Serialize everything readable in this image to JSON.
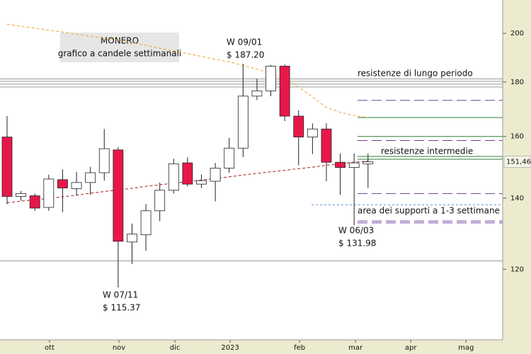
{
  "chart_data": {
    "type": "candlestick",
    "log_scale": true,
    "ylim": [
      103,
      215
    ],
    "yticks": [
      120,
      140,
      160,
      180,
      200
    ],
    "xlim": [
      -0.51,
      35.7
    ],
    "xticks": [
      {
        "value": 3.06,
        "label": "ott"
      },
      {
        "value": 8.06,
        "label": "nov"
      },
      {
        "value": 12.09,
        "label": "dic"
      },
      {
        "value": 16.07,
        "label": "2023"
      },
      {
        "value": 21.07,
        "label": "feb"
      },
      {
        "value": 25.1,
        "label": "mar"
      },
      {
        "value": 29.08,
        "label": "apr"
      },
      {
        "value": 33.06,
        "label": "mag"
      }
    ],
    "up_color": "#ffffff",
    "down_color": "#e8174a",
    "open": [
      159.8,
      140.5,
      140.7,
      137.2,
      145.7,
      142.9,
      144.8,
      147.9,
      155.4,
      127.3,
      129.3,
      136.2,
      142.4,
      151.1,
      144.3,
      145.2,
      149.4,
      156.0,
      174.6,
      176.6,
      186.3,
      167.2,
      159.8,
      162.6,
      151.3,
      149.6,
      150.8
    ],
    "high": [
      167.2,
      142.2,
      141.4,
      147.3,
      149.0,
      148.2,
      149.8,
      162.6,
      156.3,
      132.5,
      138.2,
      144.8,
      152.5,
      152.9,
      147.3,
      151.1,
      159.5,
      187.2,
      181.3,
      186.8,
      187.0,
      169.3,
      164.6,
      164.6,
      154.2,
      154.2,
      154.2
    ],
    "low": [
      138.2,
      139.2,
      136.2,
      136.2,
      135.8,
      140.7,
      141.0,
      145.4,
      115.37,
      121.4,
      124.9,
      133.2,
      141.4,
      143.6,
      143.1,
      139.0,
      147.9,
      153.0,
      173.1,
      174.6,
      165.4,
      150.3,
      154.0,
      145.2,
      141.0,
      131.98,
      143.1
    ],
    "close": [
      140.5,
      141.4,
      137.0,
      145.9,
      143.1,
      144.8,
      147.9,
      155.8,
      127.5,
      129.5,
      136.2,
      142.4,
      150.8,
      144.3,
      145.4,
      149.4,
      156.0,
      174.6,
      176.6,
      186.3,
      167.2,
      159.8,
      162.6,
      151.3,
      149.6,
      151.1,
      151.46
    ],
    "series": [
      {
        "color": "#f0a030",
        "values": [
          204.0,
          203.1,
          202.3,
          201.4,
          200.6,
          199.7,
          198.8,
          198.0,
          197.1,
          196.0,
          194.9,
          193.7,
          192.6,
          191.4,
          190.3,
          189.1,
          188.0,
          186.6,
          185.1,
          183.4,
          181.4,
          178.1,
          174.3,
          170.4,
          168.6,
          167.4,
          166.7
        ]
      },
      {
        "color": "#a02020",
        "values": [
          138.6,
          139.1,
          139.5,
          139.9,
          140.4,
          140.9,
          141.5,
          142.0,
          142.5,
          143.0,
          143.6,
          144.1,
          144.6,
          145.1,
          145.6,
          146.1,
          146.6,
          147.2,
          147.7,
          148.2,
          148.7,
          149.2,
          149.7,
          150.3,
          150.8,
          151.3,
          151.7
        ]
      }
    ],
    "long_term_levels": {
      "color": "#999999",
      "values": [
        181.2,
        180.3,
        179.2,
        178.1
      ]
    },
    "intermediate_levels": {
      "color": "#2e7d32",
      "values": [
        166.7,
        160.0,
        153.2,
        152.3
      ]
    },
    "support_levels": {
      "color": "#6a3d9a",
      "values": [
        173.0,
        158.6,
        141.4,
        133.2,
        132.7
      ]
    },
    "support_area_line": {
      "color": "#5b8fd6",
      "value": 138.0
    },
    "base_line": {
      "color": "#999999",
      "value": 122.2
    },
    "last_price": {
      "value": 151.46,
      "label": "151,46"
    },
    "title": "MONERO",
    "subtitle": "grafico a candele settimanali",
    "annotations": [
      {
        "lines": [
          "W 09/01",
          "$ 187.20"
        ]
      },
      {
        "lines": [
          "W 07/11",
          "$ 115.37"
        ]
      },
      {
        "lines": [
          "W 06/03",
          "$ 131.98"
        ]
      },
      {
        "lines": [
          "resistenze di lungo periodo"
        ]
      },
      {
        "lines": [
          "resistenze intermedie"
        ]
      },
      {
        "lines": [
          "area dei supporti a 1-3 settimane"
        ]
      }
    ]
  }
}
